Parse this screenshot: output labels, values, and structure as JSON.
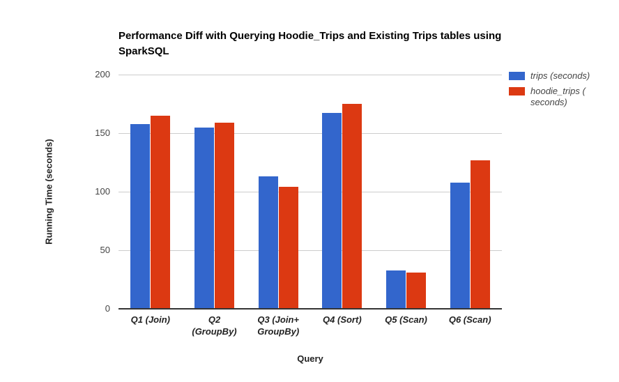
{
  "chart_data": {
    "type": "bar",
    "title": "Performance Diff with Querying Hoodie_Trips and Existing Trips tables using SparkSQL",
    "xlabel": "Query",
    "ylabel": "Running Time (seconds)",
    "ylim": [
      0,
      200
    ],
    "yticks": [
      0,
      50,
      100,
      150,
      200
    ],
    "grid": true,
    "legend_position": "right",
    "categories": [
      "Q1 (Join)",
      "Q2 (GroupBy)",
      "Q3 (Join+GroupBy)",
      "Q4 (Sort)",
      "Q5 (Scan)",
      "Q6 (Scan)"
    ],
    "categories_display": [
      "Q1 (Join)",
      "Q2 (GroupBy)",
      "Q3 (Join+\nGroupBy)",
      "Q4 (Sort)",
      "Q5 (Scan)",
      "Q6 (Scan)"
    ],
    "series": [
      {
        "name": "trips (seconds)",
        "display_label": "trips (seconds)",
        "color": "#3366CC",
        "values": [
          158,
          155,
          113,
          167,
          33,
          108
        ]
      },
      {
        "name": "hoodie_trips (seconds)",
        "display_label": "hoodie_trips (\nseconds)",
        "color": "#DC3912",
        "values": [
          165,
          159,
          104,
          175,
          31,
          127
        ]
      }
    ]
  },
  "colors": {
    "background": "#ffffff",
    "gridline": "#cccccc",
    "axis_line": "#333333",
    "tick_label": "#444444",
    "axis_title": "#222222",
    "chart_title": "#000000",
    "series_blue": "#3366CC",
    "series_red": "#DC3912"
  }
}
